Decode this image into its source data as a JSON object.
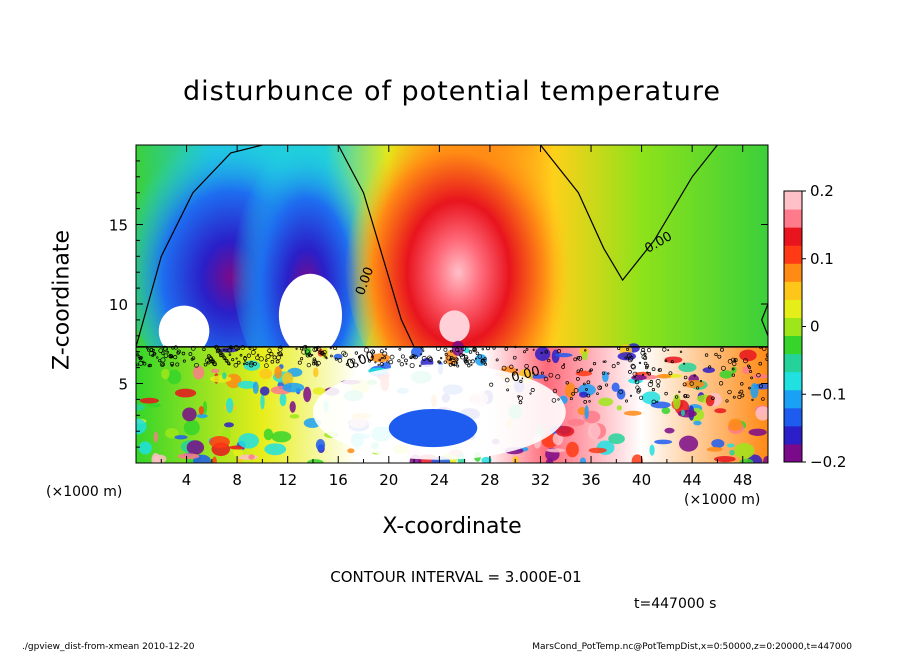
{
  "chart_data": {
    "type": "heatmap",
    "title": "disturbunce of potential temperature",
    "xlabel": "X-coordinate",
    "ylabel": "Z-coordinate",
    "x_unit_left": "(×1000 m)",
    "x_unit_right": "(×1000 m)",
    "xlim": [
      0,
      50
    ],
    "ylim": [
      0,
      20
    ],
    "x_ticks": [
      "4",
      "8",
      "12",
      "16",
      "20",
      "24",
      "28",
      "32",
      "36",
      "40",
      "44",
      "48"
    ],
    "y_ticks": [
      "5",
      "10",
      "15"
    ],
    "colorbar": {
      "range": [
        -0.2,
        0.2
      ],
      "ticks": [
        "0.2",
        "0.1",
        "0",
        "−0.1",
        "−0.2"
      ],
      "colors": [
        "#7a0a8a",
        "#2a1fc8",
        "#1e5cf0",
        "#1aa0f5",
        "#20e0e0",
        "#25d39a",
        "#35d52a",
        "#9ee61a",
        "#e6ee1a",
        "#ffc61a",
        "#ff8a14",
        "#ff3a14",
        "#e8141e",
        "#ff7a8a",
        "#ffc0c8"
      ]
    },
    "contour_labels": [
      "0.00",
      "0.00",
      "0.00",
      "0.00"
    ],
    "contour_interval_text": "CONTOUR INTERVAL = 3.000E-01",
    "time_text": "t=447000 s"
  },
  "footer": {
    "left": "./gpview_dist-from-xmean  2010-12-20",
    "right": "MarsCond_PotTemp.nc@PotTempDist,x=0:50000,z=0:20000,t=447000"
  }
}
